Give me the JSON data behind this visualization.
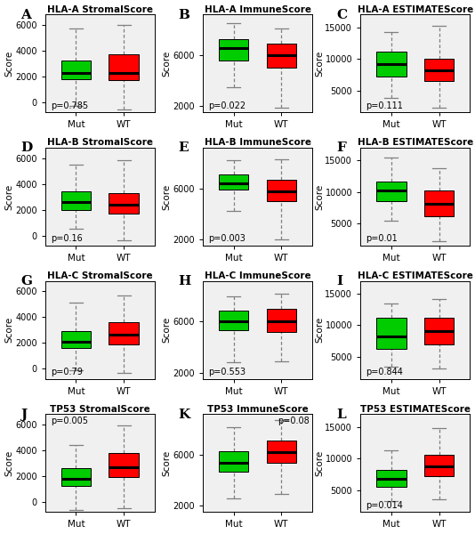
{
  "panels": [
    {
      "label": "A",
      "title": "HLA-A StromalScore",
      "pval": "p=0.785",
      "pval_pos": "bottom_left",
      "ylim": [
        -800,
        6800
      ],
      "yticks": [
        0,
        2000,
        4000,
        6000
      ],
      "mut": {
        "whisker_low": -300,
        "q1": 1800,
        "median": 2300,
        "q3": 3200,
        "whisker_high": 5700
      },
      "wt": {
        "whisker_low": -550,
        "q1": 1700,
        "median": 2300,
        "q3": 3700,
        "whisker_high": 6000
      }
    },
    {
      "label": "B",
      "title": "HLA-A ImmuneScore",
      "pval": "p=0.022",
      "pval_pos": "bottom_left",
      "ylim": [
        1500,
        9200
      ],
      "yticks": [
        2000,
        6000
      ],
      "mut": {
        "whisker_low": 3500,
        "q1": 5600,
        "median": 6600,
        "q3": 7300,
        "whisker_high": 8500
      },
      "wt": {
        "whisker_low": 1900,
        "q1": 5000,
        "median": 6000,
        "q3": 6900,
        "whisker_high": 8100
      }
    },
    {
      "label": "C",
      "title": "HLA-A ESTIMATEScore",
      "pval": "p=0.111",
      "pval_pos": "bottom_left",
      "ylim": [
        1500,
        17000
      ],
      "yticks": [
        5000,
        10000,
        15000
      ],
      "mut": {
        "whisker_low": 3800,
        "q1": 7200,
        "median": 9200,
        "q3": 11200,
        "whisker_high": 14200
      },
      "wt": {
        "whisker_low": 2200,
        "q1": 6500,
        "median": 8200,
        "q3": 10000,
        "whisker_high": 15200
      }
    },
    {
      "label": "D",
      "title": "HLA-B StromalScore",
      "pval": "p=0.16",
      "pval_pos": "bottom_left",
      "ylim": [
        -800,
        6800
      ],
      "yticks": [
        0,
        2000,
        4000,
        6000
      ],
      "mut": {
        "whisker_low": 500,
        "q1": 2000,
        "median": 2600,
        "q3": 3400,
        "whisker_high": 5500
      },
      "wt": {
        "whisker_low": -400,
        "q1": 1700,
        "median": 2400,
        "q3": 3300,
        "whisker_high": 5800
      }
    },
    {
      "label": "E",
      "title": "HLA-B ImmuneScore",
      "pval": "p=0.003",
      "pval_pos": "bottom_left",
      "ylim": [
        1500,
        9200
      ],
      "yticks": [
        2000,
        6000
      ],
      "mut": {
        "whisker_low": 4200,
        "q1": 5900,
        "median": 6400,
        "q3": 7100,
        "whisker_high": 8200
      },
      "wt": {
        "whisker_low": 2000,
        "q1": 5000,
        "median": 5800,
        "q3": 6700,
        "whisker_high": 8300
      }
    },
    {
      "label": "F",
      "title": "HLA-B ESTIMATEScore",
      "pval": "p=0.01",
      "pval_pos": "bottom_left",
      "ylim": [
        1500,
        17000
      ],
      "yticks": [
        5000,
        10000,
        15000
      ],
      "mut": {
        "whisker_low": 5500,
        "q1": 8500,
        "median": 10200,
        "q3": 11700,
        "whisker_high": 15500
      },
      "wt": {
        "whisker_low": 2200,
        "q1": 6200,
        "median": 8200,
        "q3": 10200,
        "whisker_high": 13800
      }
    },
    {
      "label": "G",
      "title": "HLA-C StromalScore",
      "pval": "p=0.79",
      "pval_pos": "bottom_left",
      "ylim": [
        -800,
        6800
      ],
      "yticks": [
        0,
        2000,
        4000,
        6000
      ],
      "mut": {
        "whisker_low": -100,
        "q1": 1600,
        "median": 2100,
        "q3": 2900,
        "whisker_high": 5100
      },
      "wt": {
        "whisker_low": -300,
        "q1": 1900,
        "median": 2600,
        "q3": 3600,
        "whisker_high": 5700
      }
    },
    {
      "label": "H",
      "title": "HLA-C ImmuneScore",
      "pval": "p=0.553",
      "pval_pos": "bottom_left",
      "ylim": [
        1500,
        9200
      ],
      "yticks": [
        2000,
        6000
      ],
      "mut": {
        "whisker_low": 2800,
        "q1": 5300,
        "median": 6000,
        "q3": 6900,
        "whisker_high": 8000
      },
      "wt": {
        "whisker_low": 2900,
        "q1": 5200,
        "median": 6000,
        "q3": 7000,
        "whisker_high": 8200
      }
    },
    {
      "label": "I",
      "title": "HLA-C ESTIMATEScore",
      "pval": "p=0.844",
      "pval_pos": "bottom_left",
      "ylim": [
        1500,
        17000
      ],
      "yticks": [
        5000,
        10000,
        15000
      ],
      "mut": {
        "whisker_low": 3500,
        "q1": 6200,
        "median": 8200,
        "q3": 11200,
        "whisker_high": 13500
      },
      "wt": {
        "whisker_low": 3200,
        "q1": 7000,
        "median": 9000,
        "q3": 11200,
        "whisker_high": 14200
      }
    },
    {
      "label": "J",
      "title": "TP53 StromalScore",
      "pval": "p=0.005",
      "pval_pos": "top_left",
      "ylim": [
        -800,
        6800
      ],
      "yticks": [
        0,
        2000,
        4000,
        6000
      ],
      "mut": {
        "whisker_low": -600,
        "q1": 1200,
        "median": 1800,
        "q3": 2600,
        "whisker_high": 4400
      },
      "wt": {
        "whisker_low": -500,
        "q1": 1900,
        "median": 2700,
        "q3": 3800,
        "whisker_high": 5900
      }
    },
    {
      "label": "K",
      "title": "TP53 ImmuneScore",
      "pval": "p=0.08",
      "pval_pos": "top_right",
      "ylim": [
        1500,
        9200
      ],
      "yticks": [
        2000,
        6000
      ],
      "mut": {
        "whisker_low": 2600,
        "q1": 4700,
        "median": 5400,
        "q3": 6300,
        "whisker_high": 8200
      },
      "wt": {
        "whisker_low": 2900,
        "q1": 5400,
        "median": 6200,
        "q3": 7100,
        "whisker_high": 8700
      }
    },
    {
      "label": "L",
      "title": "TP53 ESTIMATEScore",
      "pval": "p=0.014",
      "pval_pos": "bottom_left",
      "ylim": [
        1500,
        17000
      ],
      "yticks": [
        5000,
        10000,
        15000
      ],
      "mut": {
        "whisker_low": 3200,
        "q1": 5500,
        "median": 6800,
        "q3": 8200,
        "whisker_high": 11200
      },
      "wt": {
        "whisker_low": 3500,
        "q1": 7200,
        "median": 8700,
        "q3": 10500,
        "whisker_high": 14800
      }
    }
  ],
  "mut_color": "#00CC00",
  "wt_color": "#FF0000",
  "box_width": 0.62,
  "bg_color": "#F0F0F0",
  "median_lw": 2.2,
  "whisker_lw": 0.9,
  "cap_lw": 0.9
}
